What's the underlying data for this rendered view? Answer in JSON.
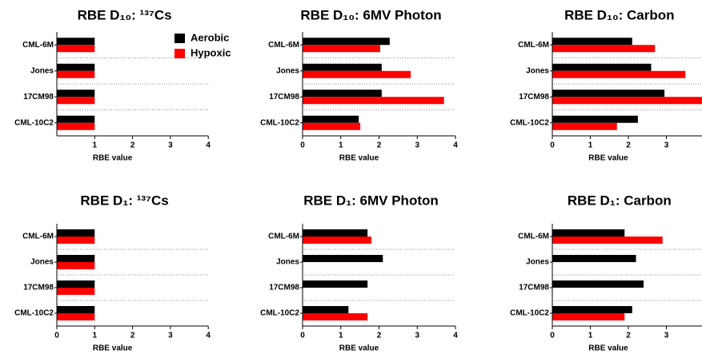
{
  "chart_data": [
    {
      "type": "bar",
      "title": "RBE D₁₀: ¹³⁷Cs",
      "xlabel": "RBE value",
      "categories": [
        "CML-6M",
        "Jones",
        "17CM98",
        "CML-10C2"
      ],
      "series": [
        {
          "name": "Aerobic",
          "color": "#000000",
          "values": [
            1,
            1,
            1,
            1
          ]
        },
        {
          "name": "Hypoxic",
          "color": "#ff0000",
          "values": [
            1,
            1,
            1,
            1
          ]
        }
      ],
      "xlim": [
        0,
        4
      ],
      "xticks": [
        1,
        2,
        3,
        4
      ]
    },
    {
      "type": "bar",
      "title": "RBE D₁₀: 6MV Photon",
      "xlabel": "RBE value",
      "categories": [
        "CML-6M",
        "Jones",
        "17CM98",
        "CML-10C2"
      ],
      "series": [
        {
          "color": "#000000",
          "values": [
            2.28,
            2.07,
            2.07,
            1.47
          ]
        },
        {
          "color": "#ff0000",
          "values": [
            2.03,
            2.83,
            3.7,
            1.51
          ]
        }
      ],
      "xlim": [
        0,
        4
      ],
      "xticks": [
        0,
        1,
        2,
        3,
        4
      ]
    },
    {
      "type": "bar",
      "title": "RBE D₁₀: Carbon",
      "xlabel": "RBE value",
      "categories": [
        "CML-6M",
        "Jones",
        "17CM98",
        "CML-10C2"
      ],
      "series": [
        {
          "color": "#000000",
          "values": [
            2.1,
            2.6,
            2.95,
            2.25
          ]
        },
        {
          "color": "#ff0000",
          "values": [
            2.7,
            3.5,
            3.95,
            1.7
          ]
        }
      ],
      "xlim": [
        0,
        3.95
      ],
      "xticks": [
        0,
        1,
        2,
        3
      ]
    },
    {
      "type": "bar",
      "title": "RBE D₁: ¹³⁷Cs",
      "xlabel": "RBE value",
      "categories": [
        "CML-6M",
        "Jones",
        "17CM98",
        "CML-10C2"
      ],
      "series": [
        {
          "color": "#000000",
          "values": [
            1,
            1,
            1,
            1
          ]
        },
        {
          "color": "#ff0000",
          "values": [
            1,
            1,
            1,
            1
          ]
        }
      ],
      "xlim": [
        0,
        4
      ],
      "xticks": [
        0,
        1,
        2,
        3,
        4
      ]
    },
    {
      "type": "bar",
      "title": "RBE D₁: 6MV Photon",
      "xlabel": "RBE value",
      "categories": [
        "CML-6M",
        "Jones",
        "17CM98",
        "CML-10C2"
      ],
      "series": [
        {
          "color": "#000000",
          "values": [
            1.7,
            2.1,
            1.7,
            1.2
          ]
        },
        {
          "color": "#ff0000",
          "values": [
            1.8,
            null,
            null,
            1.7
          ]
        }
      ],
      "xlim": [
        0,
        4
      ],
      "xticks": [
        0,
        1,
        2,
        3,
        4
      ]
    },
    {
      "type": "bar",
      "title": "RBE D₁: Carbon",
      "xlabel": "RBE value",
      "categories": [
        "CML-6M",
        "Jones",
        "17CM98",
        "CML-10C2"
      ],
      "series": [
        {
          "color": "#000000",
          "values": [
            1.9,
            2.2,
            2.4,
            2.1
          ]
        },
        {
          "color": "#ff0000",
          "values": [
            2.9,
            null,
            null,
            1.9
          ]
        }
      ],
      "xlim": [
        0,
        3.95
      ],
      "xticks": [
        0,
        1,
        2,
        3
      ]
    }
  ]
}
